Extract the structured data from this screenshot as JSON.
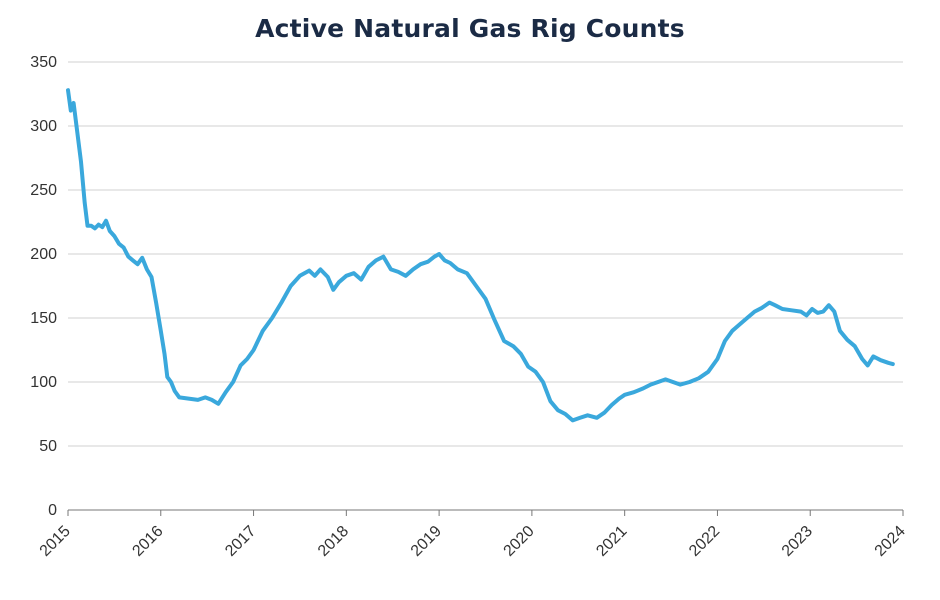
{
  "chart_data": {
    "type": "line",
    "title": "Active Natural Gas Rig Counts",
    "xlabel": "",
    "ylabel": "",
    "ylim": [
      0,
      350
    ],
    "xlim": [
      2015,
      2024
    ],
    "yticks": [
      "0",
      "50",
      "100",
      "150",
      "200",
      "250",
      "300",
      "350"
    ],
    "xticks": [
      "2015",
      "2016",
      "2017",
      "2018",
      "2019",
      "2020",
      "2021",
      "2022",
      "2023",
      "2024"
    ],
    "grid": "horizontal",
    "legend": "none",
    "colors": {
      "line": "#3aa8dc",
      "grid": "#d0d0d0",
      "axis": "#777777"
    },
    "series": [
      {
        "values": [
          [
            2015.0,
            328
          ],
          [
            2015.03,
            312
          ],
          [
            2015.06,
            318
          ],
          [
            2015.1,
            295
          ],
          [
            2015.14,
            272
          ],
          [
            2015.18,
            240
          ],
          [
            2015.21,
            222
          ],
          [
            2015.25,
            222
          ],
          [
            2015.29,
            220
          ],
          [
            2015.33,
            223
          ],
          [
            2015.37,
            221
          ],
          [
            2015.41,
            226
          ],
          [
            2015.45,
            218
          ],
          [
            2015.5,
            214
          ],
          [
            2015.55,
            208
          ],
          [
            2015.6,
            205
          ],
          [
            2015.65,
            198
          ],
          [
            2015.7,
            195
          ],
          [
            2015.75,
            192
          ],
          [
            2015.8,
            197
          ],
          [
            2015.85,
            188
          ],
          [
            2015.9,
            182
          ],
          [
            2015.95,
            162
          ],
          [
            2016.0,
            140
          ],
          [
            2016.04,
            122
          ],
          [
            2016.07,
            104
          ],
          [
            2016.11,
            100
          ],
          [
            2016.15,
            93
          ],
          [
            2016.2,
            88
          ],
          [
            2016.3,
            87
          ],
          [
            2016.4,
            86
          ],
          [
            2016.48,
            88
          ],
          [
            2016.55,
            86
          ],
          [
            2016.62,
            83
          ],
          [
            2016.7,
            92
          ],
          [
            2016.78,
            100
          ],
          [
            2016.86,
            113
          ],
          [
            2016.93,
            118
          ],
          [
            2017.0,
            125
          ],
          [
            2017.1,
            140
          ],
          [
            2017.2,
            150
          ],
          [
            2017.3,
            162
          ],
          [
            2017.4,
            175
          ],
          [
            2017.5,
            183
          ],
          [
            2017.6,
            187
          ],
          [
            2017.66,
            183
          ],
          [
            2017.72,
            188
          ],
          [
            2017.8,
            182
          ],
          [
            2017.86,
            172
          ],
          [
            2017.92,
            178
          ],
          [
            2018.0,
            183
          ],
          [
            2018.08,
            185
          ],
          [
            2018.16,
            180
          ],
          [
            2018.24,
            190
          ],
          [
            2018.32,
            195
          ],
          [
            2018.4,
            198
          ],
          [
            2018.48,
            188
          ],
          [
            2018.56,
            186
          ],
          [
            2018.64,
            183
          ],
          [
            2018.72,
            188
          ],
          [
            2018.8,
            192
          ],
          [
            2018.88,
            194
          ],
          [
            2018.95,
            198
          ],
          [
            2019.0,
            200
          ],
          [
            2019.06,
            195
          ],
          [
            2019.12,
            193
          ],
          [
            2019.2,
            188
          ],
          [
            2019.3,
            185
          ],
          [
            2019.4,
            175
          ],
          [
            2019.5,
            165
          ],
          [
            2019.6,
            148
          ],
          [
            2019.7,
            132
          ],
          [
            2019.8,
            128
          ],
          [
            2019.88,
            122
          ],
          [
            2019.96,
            112
          ],
          [
            2020.04,
            108
          ],
          [
            2020.12,
            100
          ],
          [
            2020.2,
            85
          ],
          [
            2020.28,
            78
          ],
          [
            2020.36,
            75
          ],
          [
            2020.44,
            70
          ],
          [
            2020.52,
            72
          ],
          [
            2020.6,
            74
          ],
          [
            2020.7,
            72
          ],
          [
            2020.78,
            76
          ],
          [
            2020.86,
            82
          ],
          [
            2020.94,
            87
          ],
          [
            2021.0,
            90
          ],
          [
            2021.1,
            92
          ],
          [
            2021.2,
            95
          ],
          [
            2021.28,
            98
          ],
          [
            2021.36,
            100
          ],
          [
            2021.44,
            102
          ],
          [
            2021.52,
            100
          ],
          [
            2021.6,
            98
          ],
          [
            2021.7,
            100
          ],
          [
            2021.8,
            103
          ],
          [
            2021.9,
            108
          ],
          [
            2022.0,
            118
          ],
          [
            2022.08,
            132
          ],
          [
            2022.16,
            140
          ],
          [
            2022.24,
            145
          ],
          [
            2022.32,
            150
          ],
          [
            2022.4,
            155
          ],
          [
            2022.48,
            158
          ],
          [
            2022.56,
            162
          ],
          [
            2022.62,
            160
          ],
          [
            2022.7,
            157
          ],
          [
            2022.8,
            156
          ],
          [
            2022.9,
            155
          ],
          [
            2022.96,
            152
          ],
          [
            2023.02,
            157
          ],
          [
            2023.08,
            154
          ],
          [
            2023.14,
            155
          ],
          [
            2023.2,
            160
          ],
          [
            2023.26,
            155
          ],
          [
            2023.32,
            140
          ],
          [
            2023.4,
            133
          ],
          [
            2023.48,
            128
          ],
          [
            2023.56,
            118
          ],
          [
            2023.62,
            113
          ],
          [
            2023.68,
            120
          ],
          [
            2023.76,
            117
          ],
          [
            2023.84,
            115
          ],
          [
            2023.89,
            114
          ]
        ]
      }
    ]
  }
}
